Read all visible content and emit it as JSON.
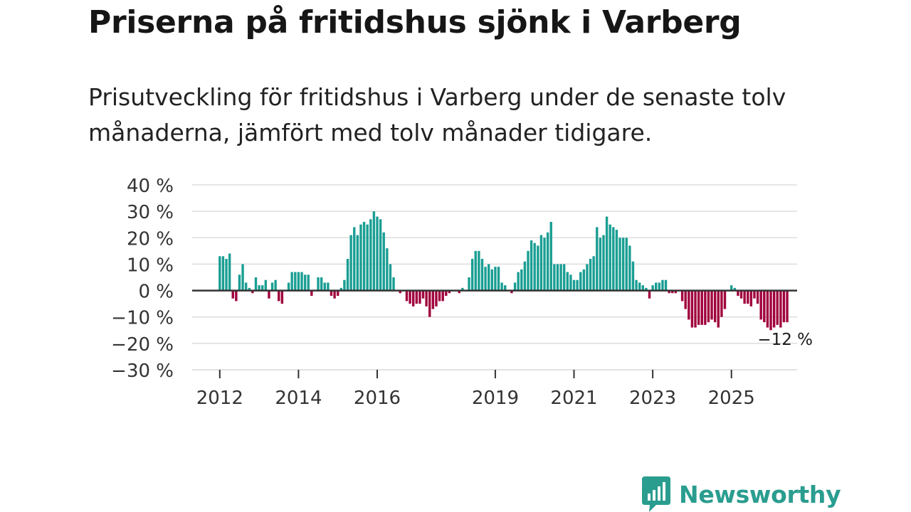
{
  "title": "Priserna på fritidshus sjönk i Varberg",
  "subtitle": "Prisutveckling för fritidshus i Varberg under de senaste tolv månaderna, jämfört med tolv månader tidigare.",
  "brand": {
    "name": "Newsworthy"
  },
  "colors": {
    "positive": "#1a9e93",
    "negative": "#a0003c",
    "grid": "#dddddd",
    "zero": "#333333"
  },
  "chart_data": {
    "type": "bar",
    "title": "Priserna på fritidshus sjönk i Varberg",
    "xlabel": "",
    "ylabel": "",
    "ylim": [
      -30,
      40
    ],
    "yticks": [
      40,
      30,
      20,
      10,
      0,
      -10,
      -20,
      -30
    ],
    "ytick_labels": [
      "40 %",
      "30 %",
      "20 %",
      "10 %",
      "0 %",
      "−10 %",
      "−20 %",
      "−30 %"
    ],
    "xticks": [
      {
        "label": "2012",
        "year": 2012
      },
      {
        "label": "2014",
        "year": 2014
      },
      {
        "label": "2016",
        "year": 2016
      },
      {
        "label": "2019",
        "year": 2019
      },
      {
        "label": "2021",
        "year": 2021
      },
      {
        "label": "2023",
        "year": 2023
      },
      {
        "label": "2025",
        "year": 2025
      }
    ],
    "start": "2012-01",
    "frequency": "monthly",
    "values": [
      13,
      13,
      12,
      14,
      -3,
      -4,
      6,
      10,
      3,
      1,
      -1,
      5,
      2,
      2,
      4,
      -3,
      3,
      4,
      -4,
      -5,
      0,
      3,
      7,
      7,
      7,
      7,
      6,
      6,
      -2,
      0,
      5,
      5,
      3,
      3,
      -2,
      -3,
      -2,
      1,
      4,
      12,
      21,
      24,
      21,
      25,
      26,
      25,
      27,
      30,
      28,
      27,
      22,
      16,
      10,
      5,
      0,
      -1,
      0,
      -4,
      -5,
      -6,
      -5,
      -5,
      -3,
      -6,
      -10,
      -7,
      -6,
      -4,
      -4,
      -2,
      -1,
      0,
      0,
      -1,
      1,
      0,
      5,
      12,
      15,
      15,
      12,
      9,
      10,
      8,
      9,
      9,
      3,
      2,
      0,
      -1,
      3,
      7,
      8,
      11,
      15,
      19,
      18,
      17,
      21,
      20,
      22,
      26,
      10,
      10,
      10,
      10,
      7,
      6,
      4,
      4,
      7,
      8,
      10,
      12,
      13,
      24,
      20,
      21,
      28,
      25,
      24,
      23,
      20,
      20,
      20,
      17,
      11,
      4,
      3,
      2,
      1,
      -3,
      2,
      3,
      3,
      4,
      4,
      -1,
      -1,
      -1,
      0,
      -4,
      -7,
      -11,
      -14,
      -14,
      -13,
      -13,
      -13,
      -12,
      -11,
      -12,
      -14,
      -10,
      -7,
      0,
      2,
      1,
      -2,
      -3,
      -5,
      -5,
      -6,
      -3,
      -5,
      -11,
      -12,
      -14,
      -15,
      -14,
      -13,
      -14,
      -12,
      -12
    ],
    "last_label": "−12 %"
  }
}
